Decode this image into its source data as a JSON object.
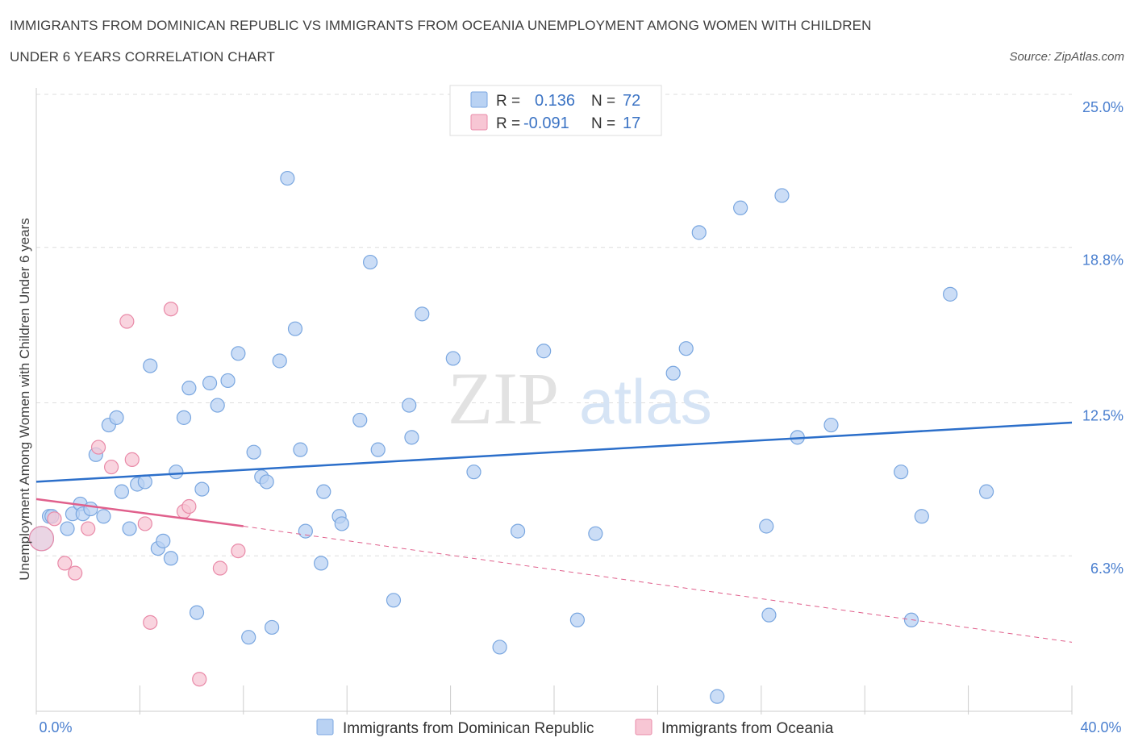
{
  "header": {
    "title_line1": "IMMIGRANTS FROM DOMINICAN REPUBLIC VS IMMIGRANTS FROM OCEANIA UNEMPLOYMENT AMONG WOMEN WITH CHILDREN",
    "title_line2": "UNDER 6 YEARS CORRELATION CHART",
    "source": "Source: ZipAtlas.com"
  },
  "watermark": {
    "zip": "ZIP",
    "atlas": "atlas"
  },
  "legend": {
    "r_label": "R =",
    "n_label": "N =",
    "series": [
      {
        "r": "0.136",
        "n": "72"
      },
      {
        "r": "-0.091",
        "n": "17"
      }
    ]
  },
  "colors": {
    "blue_fill": "#b9d2f3",
    "blue_stroke": "#7aa7e0",
    "blue_line": "#2c6fca",
    "pink_fill": "#f7c6d4",
    "pink_stroke": "#e98aa8",
    "pink_line": "#e0608c",
    "grid": "#dddddd",
    "tick_text": "#4a7fcf"
  },
  "chart_data": {
    "type": "scatter",
    "title": "Immigrants from Dominican Republic vs Immigrants from Oceania Unemployment Among Women with Children Under 6 years Correlation Chart",
    "xlabel": "",
    "ylabel": "Unemployment Among Women with Children Under 6 years",
    "xlim": [
      0,
      40
    ],
    "ylim": [
      0,
      25
    ],
    "x_tick_labels": [
      "0.0%",
      "40.0%"
    ],
    "y_ticks": [
      6.3,
      12.5,
      18.8,
      25.0
    ],
    "y_tick_labels": [
      "6.3%",
      "12.5%",
      "18.8%",
      "25.0%"
    ],
    "legend_position": "top-center",
    "series": [
      {
        "name": "Immigrants from Dominican Republic",
        "color": "#b9d2f3",
        "trend": {
          "x": [
            0,
            40
          ],
          "y": [
            9.3,
            11.7
          ],
          "style": "solid"
        },
        "points": [
          [
            0.2,
            7.0
          ],
          [
            0.5,
            7.9
          ],
          [
            0.6,
            7.9
          ],
          [
            1.2,
            7.4
          ],
          [
            1.4,
            8.0
          ],
          [
            1.7,
            8.4
          ],
          [
            1.8,
            8.0
          ],
          [
            2.1,
            8.2
          ],
          [
            2.3,
            10.4
          ],
          [
            2.6,
            7.9
          ],
          [
            2.8,
            11.6
          ],
          [
            3.1,
            11.9
          ],
          [
            3.3,
            8.9
          ],
          [
            3.6,
            7.4
          ],
          [
            3.9,
            9.2
          ],
          [
            4.2,
            9.3
          ],
          [
            4.4,
            14.0
          ],
          [
            4.7,
            6.6
          ],
          [
            4.9,
            6.9
          ],
          [
            5.2,
            6.2
          ],
          [
            5.4,
            9.7
          ],
          [
            5.7,
            11.9
          ],
          [
            5.9,
            13.1
          ],
          [
            6.2,
            4.0
          ],
          [
            6.4,
            9.0
          ],
          [
            6.7,
            13.3
          ],
          [
            7.0,
            12.4
          ],
          [
            7.4,
            13.4
          ],
          [
            7.8,
            14.5
          ],
          [
            8.2,
            3.0
          ],
          [
            8.4,
            10.5
          ],
          [
            8.7,
            9.5
          ],
          [
            8.9,
            9.3
          ],
          [
            9.1,
            3.4
          ],
          [
            9.4,
            14.2
          ],
          [
            9.7,
            21.6
          ],
          [
            10.0,
            15.5
          ],
          [
            10.2,
            10.6
          ],
          [
            10.4,
            7.3
          ],
          [
            11.0,
            6.0
          ],
          [
            11.1,
            8.9
          ],
          [
            11.7,
            7.9
          ],
          [
            11.8,
            7.6
          ],
          [
            12.5,
            11.8
          ],
          [
            12.9,
            18.2
          ],
          [
            13.2,
            10.6
          ],
          [
            13.8,
            4.5
          ],
          [
            14.4,
            12.4
          ],
          [
            14.5,
            11.1
          ],
          [
            14.9,
            16.1
          ],
          [
            16.1,
            14.3
          ],
          [
            16.9,
            9.7
          ],
          [
            17.9,
            2.6
          ],
          [
            18.6,
            7.3
          ],
          [
            19.6,
            14.6
          ],
          [
            20.9,
            3.7
          ],
          [
            21.6,
            7.2
          ],
          [
            24.6,
            13.7
          ],
          [
            25.1,
            14.7
          ],
          [
            25.6,
            19.4
          ],
          [
            26.3,
            0.6
          ],
          [
            27.2,
            20.4
          ],
          [
            28.2,
            7.5
          ],
          [
            28.3,
            3.9
          ],
          [
            28.8,
            20.9
          ],
          [
            29.4,
            11.1
          ],
          [
            30.7,
            11.6
          ],
          [
            33.4,
            9.7
          ],
          [
            33.8,
            3.7
          ],
          [
            34.2,
            7.9
          ],
          [
            35.3,
            16.9
          ],
          [
            36.7,
            8.9
          ]
        ]
      },
      {
        "name": "Immigrants from Oceania",
        "color": "#f7c6d4",
        "trend": {
          "x": [
            0,
            8
          ],
          "y": [
            8.6,
            7.5
          ],
          "style": "solid",
          "extended_to": [
            40,
            2.8
          ],
          "extended_style": "dashed"
        },
        "points": [
          [
            0.2,
            7.0
          ],
          [
            0.7,
            7.8
          ],
          [
            1.1,
            6.0
          ],
          [
            1.5,
            5.6
          ],
          [
            2.0,
            7.4
          ],
          [
            2.4,
            10.7
          ],
          [
            2.9,
            9.9
          ],
          [
            3.5,
            15.8
          ],
          [
            3.7,
            10.2
          ],
          [
            4.2,
            7.6
          ],
          [
            4.4,
            3.6
          ],
          [
            5.2,
            16.3
          ],
          [
            5.7,
            8.1
          ],
          [
            5.9,
            8.3
          ],
          [
            6.3,
            1.3
          ],
          [
            7.1,
            5.8
          ],
          [
            7.8,
            6.5
          ]
        ]
      }
    ]
  },
  "bottom_legend": {
    "items": [
      "Immigrants from Dominican Republic",
      "Immigrants from Oceania"
    ]
  }
}
